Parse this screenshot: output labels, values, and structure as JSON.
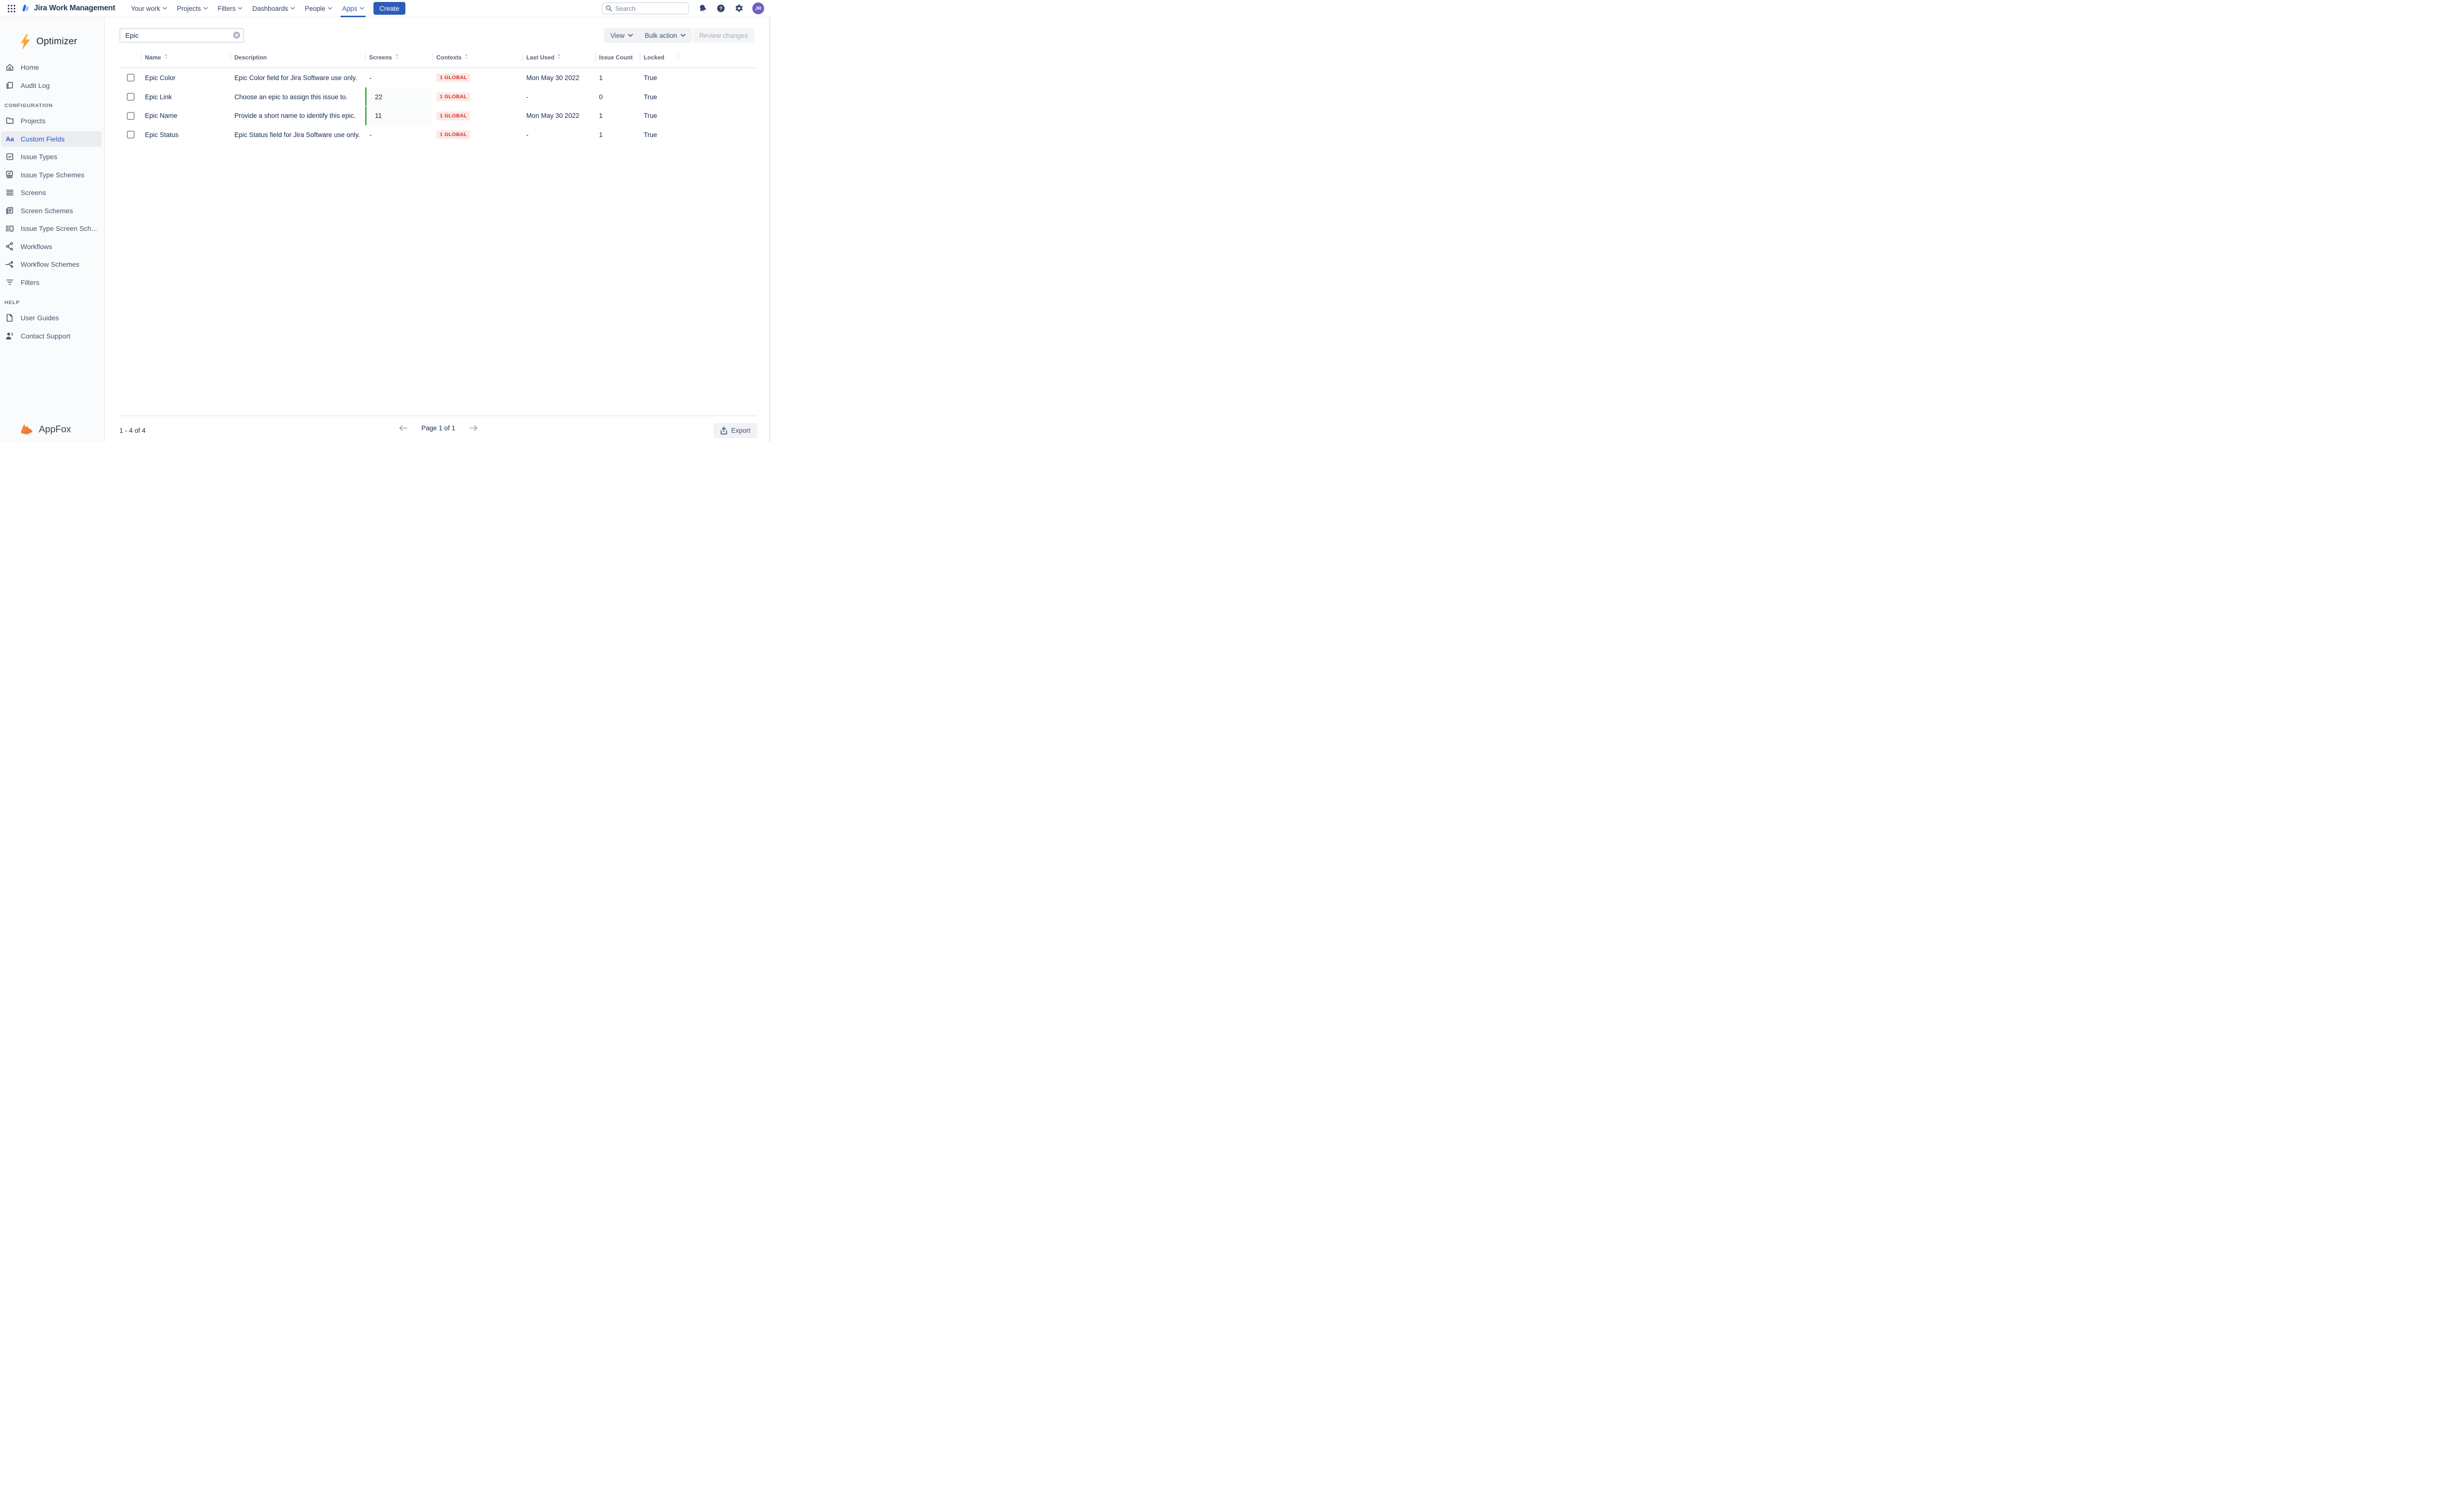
{
  "navbar": {
    "product": "Jira Work Management",
    "menus": [
      {
        "label": "Your work",
        "active": false
      },
      {
        "label": "Projects",
        "active": false
      },
      {
        "label": "Filters",
        "active": false
      },
      {
        "label": "Dashboards",
        "active": false
      },
      {
        "label": "People",
        "active": false
      },
      {
        "label": "Apps",
        "active": true
      }
    ],
    "create_label": "Create",
    "search_placeholder": "Search",
    "avatar_initials": "JR"
  },
  "sidebar": {
    "app_name": "Optimizer",
    "main_items": [
      {
        "label": "Home",
        "icon": "home",
        "selected": false
      },
      {
        "label": "Audit Log",
        "icon": "audit-log",
        "selected": false
      }
    ],
    "configuration_title": "CONFIGURATION",
    "configuration_items": [
      {
        "label": "Projects",
        "icon": "projects-folder",
        "selected": false
      },
      {
        "label": "Custom Fields",
        "icon": "custom-fields",
        "selected": true
      },
      {
        "label": "Issue Types",
        "icon": "issue-types",
        "selected": false
      },
      {
        "label": "Issue Type Schemes",
        "icon": "issue-type-schemes",
        "selected": false
      },
      {
        "label": "Screens",
        "icon": "screens",
        "selected": false
      },
      {
        "label": "Screen Schemes",
        "icon": "screen-schemes",
        "selected": false
      },
      {
        "label": "Issue Type Screen Sch...",
        "icon": "issue-type-screen-schemes",
        "selected": false
      },
      {
        "label": "Workflows",
        "icon": "workflows",
        "selected": false
      },
      {
        "label": "Workflow Schemes",
        "icon": "workflow-schemes",
        "selected": false
      },
      {
        "label": "Filters",
        "icon": "filters",
        "selected": false
      }
    ],
    "help_title": "HELP",
    "help_items": [
      {
        "label": "User Guides",
        "icon": "user-guides",
        "selected": false
      },
      {
        "label": "Contact Support",
        "icon": "contact-support",
        "selected": false
      }
    ],
    "footer_brand": "AppFox"
  },
  "toolbar": {
    "search_value": "Epic",
    "view_label": "View",
    "bulk_action_label": "Bulk action",
    "review_changes_label": "Review changes"
  },
  "table": {
    "columns": [
      {
        "label": "Name",
        "sortable": true
      },
      {
        "label": "Description",
        "sortable": false
      },
      {
        "label": "Screens",
        "sortable": true
      },
      {
        "label": "Contexts",
        "sortable": true
      },
      {
        "label": "Last Used",
        "sortable": true
      },
      {
        "label": "Issue Count",
        "sortable": false
      },
      {
        "label": "Locked",
        "sortable": false
      }
    ],
    "rows": [
      {
        "name": "Epic Color",
        "description": "Epic Color field for Jira Software use only.",
        "screens": "-",
        "screens_highlight": false,
        "contexts": "1 GLOBAL",
        "last_used": "Mon May 30 2022",
        "issue_count": "1",
        "locked": "True"
      },
      {
        "name": "Epic Link",
        "description": "Choose an epic to assign this issue to.",
        "screens": "22",
        "screens_highlight": true,
        "contexts": "1 GLOBAL",
        "last_used": "-",
        "issue_count": "0",
        "locked": "True"
      },
      {
        "name": "Epic Name",
        "description": "Provide a short name to identify this epic.",
        "screens": "11",
        "screens_highlight": true,
        "contexts": "1 GLOBAL",
        "last_used": "Mon May 30 2022",
        "issue_count": "1",
        "locked": "True"
      },
      {
        "name": "Epic Status",
        "description": "Epic Status field for Jira Software use only.",
        "screens": "-",
        "screens_highlight": false,
        "contexts": "1 GLOBAL",
        "last_used": "-",
        "issue_count": "1",
        "locked": "True"
      }
    ]
  },
  "pagination": {
    "range": "1 - 4 of 4",
    "page": "Page 1 of 1",
    "export_label": "Export"
  },
  "colors": {
    "nav_blue": "#2D5CB8",
    "sidebar_selected_blue": "#2458C7",
    "screens_green": "#4CAF50",
    "badge_red": "#C9372C",
    "badge_bg": "#FCE9E7",
    "avatar_purple": "#6E5DC6",
    "bolt_orange": "#F6A221"
  }
}
